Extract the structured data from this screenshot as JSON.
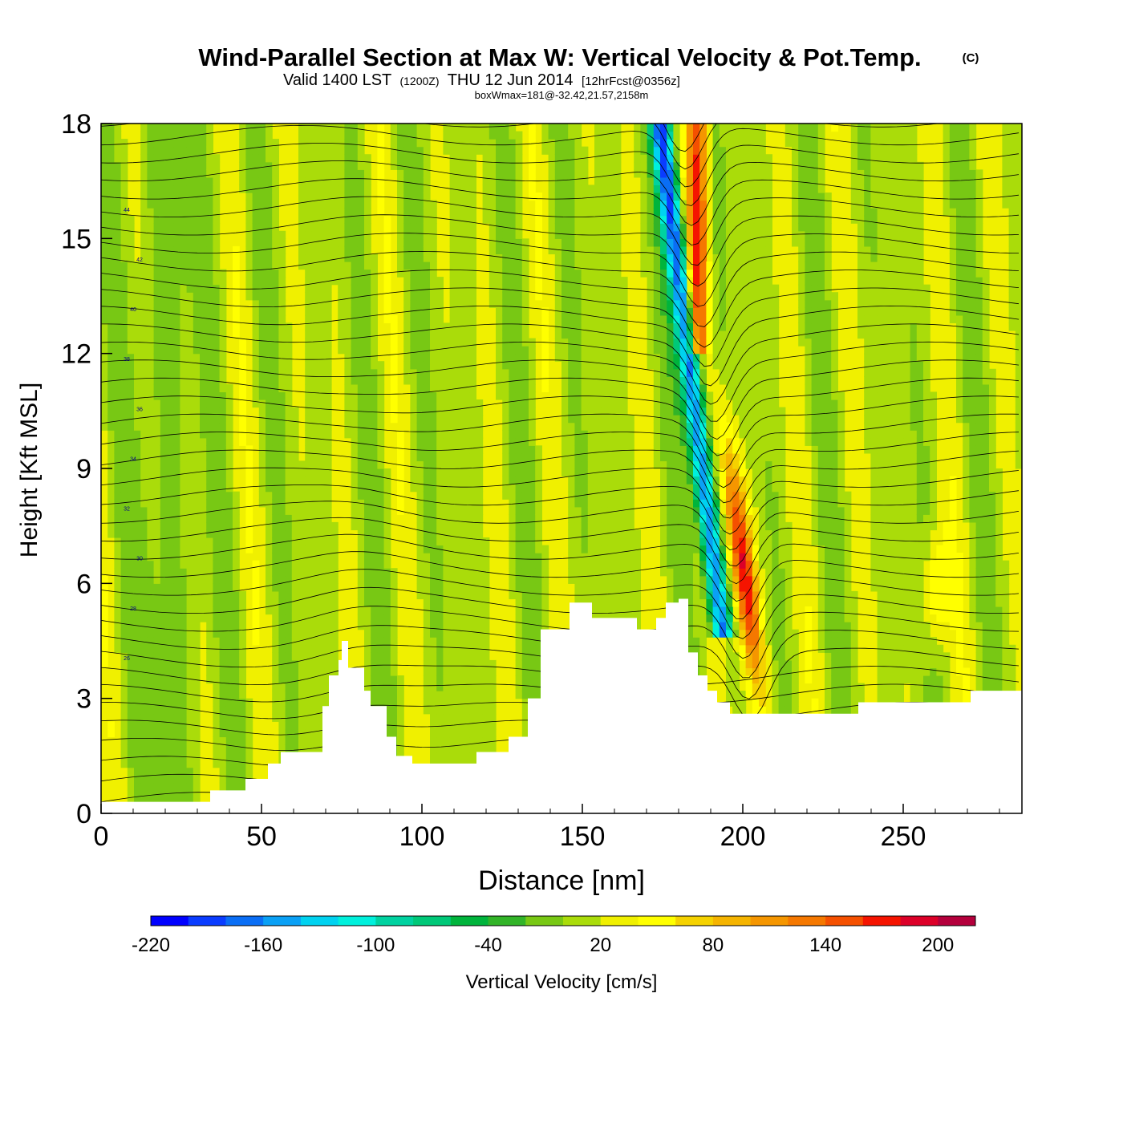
{
  "title": {
    "main": "Wind-Parallel Section at Max W: Vertical Velocity & Pot.Temp.",
    "copyright": "(C)",
    "valid_prefix": "Valid 1400 LST",
    "valid_zulu": "(1200Z)",
    "valid_date": "THU 12 Jun 2014",
    "forecast": "[12hrFcst@0356z]",
    "box_info": "boxWmax=181@-32.42,21.57,2158m"
  },
  "chart_data": {
    "type": "heatmap",
    "subtype": "vertical cross-section with filled contours (vertical velocity) and line contours (potential temperature)",
    "xlabel": "Distance [nm]",
    "ylabel": "Height [Kft MSL]",
    "xlim": [
      0,
      287
    ],
    "ylim": [
      0,
      18
    ],
    "x_ticks": [
      "0",
      "50",
      "100",
      "150",
      "200",
      "250"
    ],
    "x_tick_values": [
      0,
      50,
      100,
      150,
      200,
      250
    ],
    "y_ticks": [
      "0",
      "3",
      "6",
      "9",
      "12",
      "15",
      "18"
    ],
    "y_tick_values": [
      0,
      3,
      6,
      9,
      12,
      15,
      18
    ],
    "terrain": {
      "description": "blank (below-ground) region along the bottom",
      "x": [
        0,
        34,
        34,
        45,
        45,
        52,
        52,
        56,
        56,
        64,
        64,
        69,
        69,
        71,
        71,
        74,
        74,
        75,
        75,
        77,
        77,
        82,
        82,
        84,
        84,
        89,
        89,
        92,
        92,
        97,
        97,
        117,
        117,
        127,
        127,
        133,
        133,
        137,
        137,
        146,
        146,
        153,
        153,
        160,
        160,
        167,
        167,
        173,
        173,
        176,
        176,
        180,
        180,
        183,
        183,
        186,
        186,
        189,
        189,
        192,
        192,
        196,
        196,
        208,
        208,
        236,
        236,
        271,
        271,
        287
      ],
      "kft": [
        0.3,
        0.3,
        0.6,
        0.6,
        0.9,
        0.9,
        1.3,
        1.3,
        1.6,
        1.6,
        1.6,
        1.6,
        2.8,
        2.8,
        3.6,
        3.6,
        4.0,
        4.0,
        4.5,
        4.5,
        3.8,
        3.8,
        3.2,
        3.2,
        2.8,
        2.8,
        2.0,
        2.0,
        1.5,
        1.5,
        1.3,
        1.3,
        1.6,
        1.6,
        2.0,
        2.0,
        3.0,
        3.0,
        4.8,
        4.8,
        5.5,
        5.5,
        5.1,
        5.1,
        5.1,
        5.1,
        4.8,
        4.8,
        5.1,
        5.1,
        5.5,
        5.5,
        5.6,
        5.6,
        4.2,
        4.2,
        3.6,
        3.6,
        3.2,
        3.2,
        2.9,
        2.9,
        2.6,
        2.6,
        2.6,
        2.6,
        2.9,
        2.9,
        3.2,
        3.2
      ]
    },
    "potential_temperature_contours": {
      "units": "deg C",
      "interval": 1,
      "labels_shown": [
        "26",
        "28",
        "30",
        "32",
        "34",
        "36",
        "38",
        "40",
        "42",
        "44"
      ]
    },
    "colorbar": {
      "label": "Vertical Velocity [cm/s]",
      "levels": [
        -220,
        -200,
        -180,
        -160,
        -140,
        -120,
        -100,
        -80,
        -60,
        -40,
        -20,
        0,
        20,
        40,
        60,
        80,
        100,
        120,
        140,
        160,
        180,
        200
      ],
      "tick_labels": [
        "-220",
        "-160",
        "-100",
        "-40",
        "20",
        "80",
        "140",
        "200"
      ],
      "colors": [
        "#0000ff",
        "#0a3cff",
        "#0a6ef5",
        "#0aa0f5",
        "#00d2f0",
        "#00f0dc",
        "#00d2a0",
        "#00c878",
        "#00b43c",
        "#32b428",
        "#78c814",
        "#aadc0a",
        "#f0f000",
        "#ffff00",
        "#f5d200",
        "#f5b400",
        "#f59600",
        "#f57800",
        "#f55000",
        "#f51400",
        "#dc0028",
        "#b4003c"
      ]
    },
    "features": [
      {
        "name": "sloped updraft/downdraft couplet",
        "x_range": [
          176,
          206
        ],
        "kft_range": [
          4.5,
          18
        ],
        "w_min": -180,
        "w_max": 181
      },
      {
        "name": "max updraft core",
        "x": 199,
        "kft": 6.5,
        "w": 181
      }
    ]
  }
}
